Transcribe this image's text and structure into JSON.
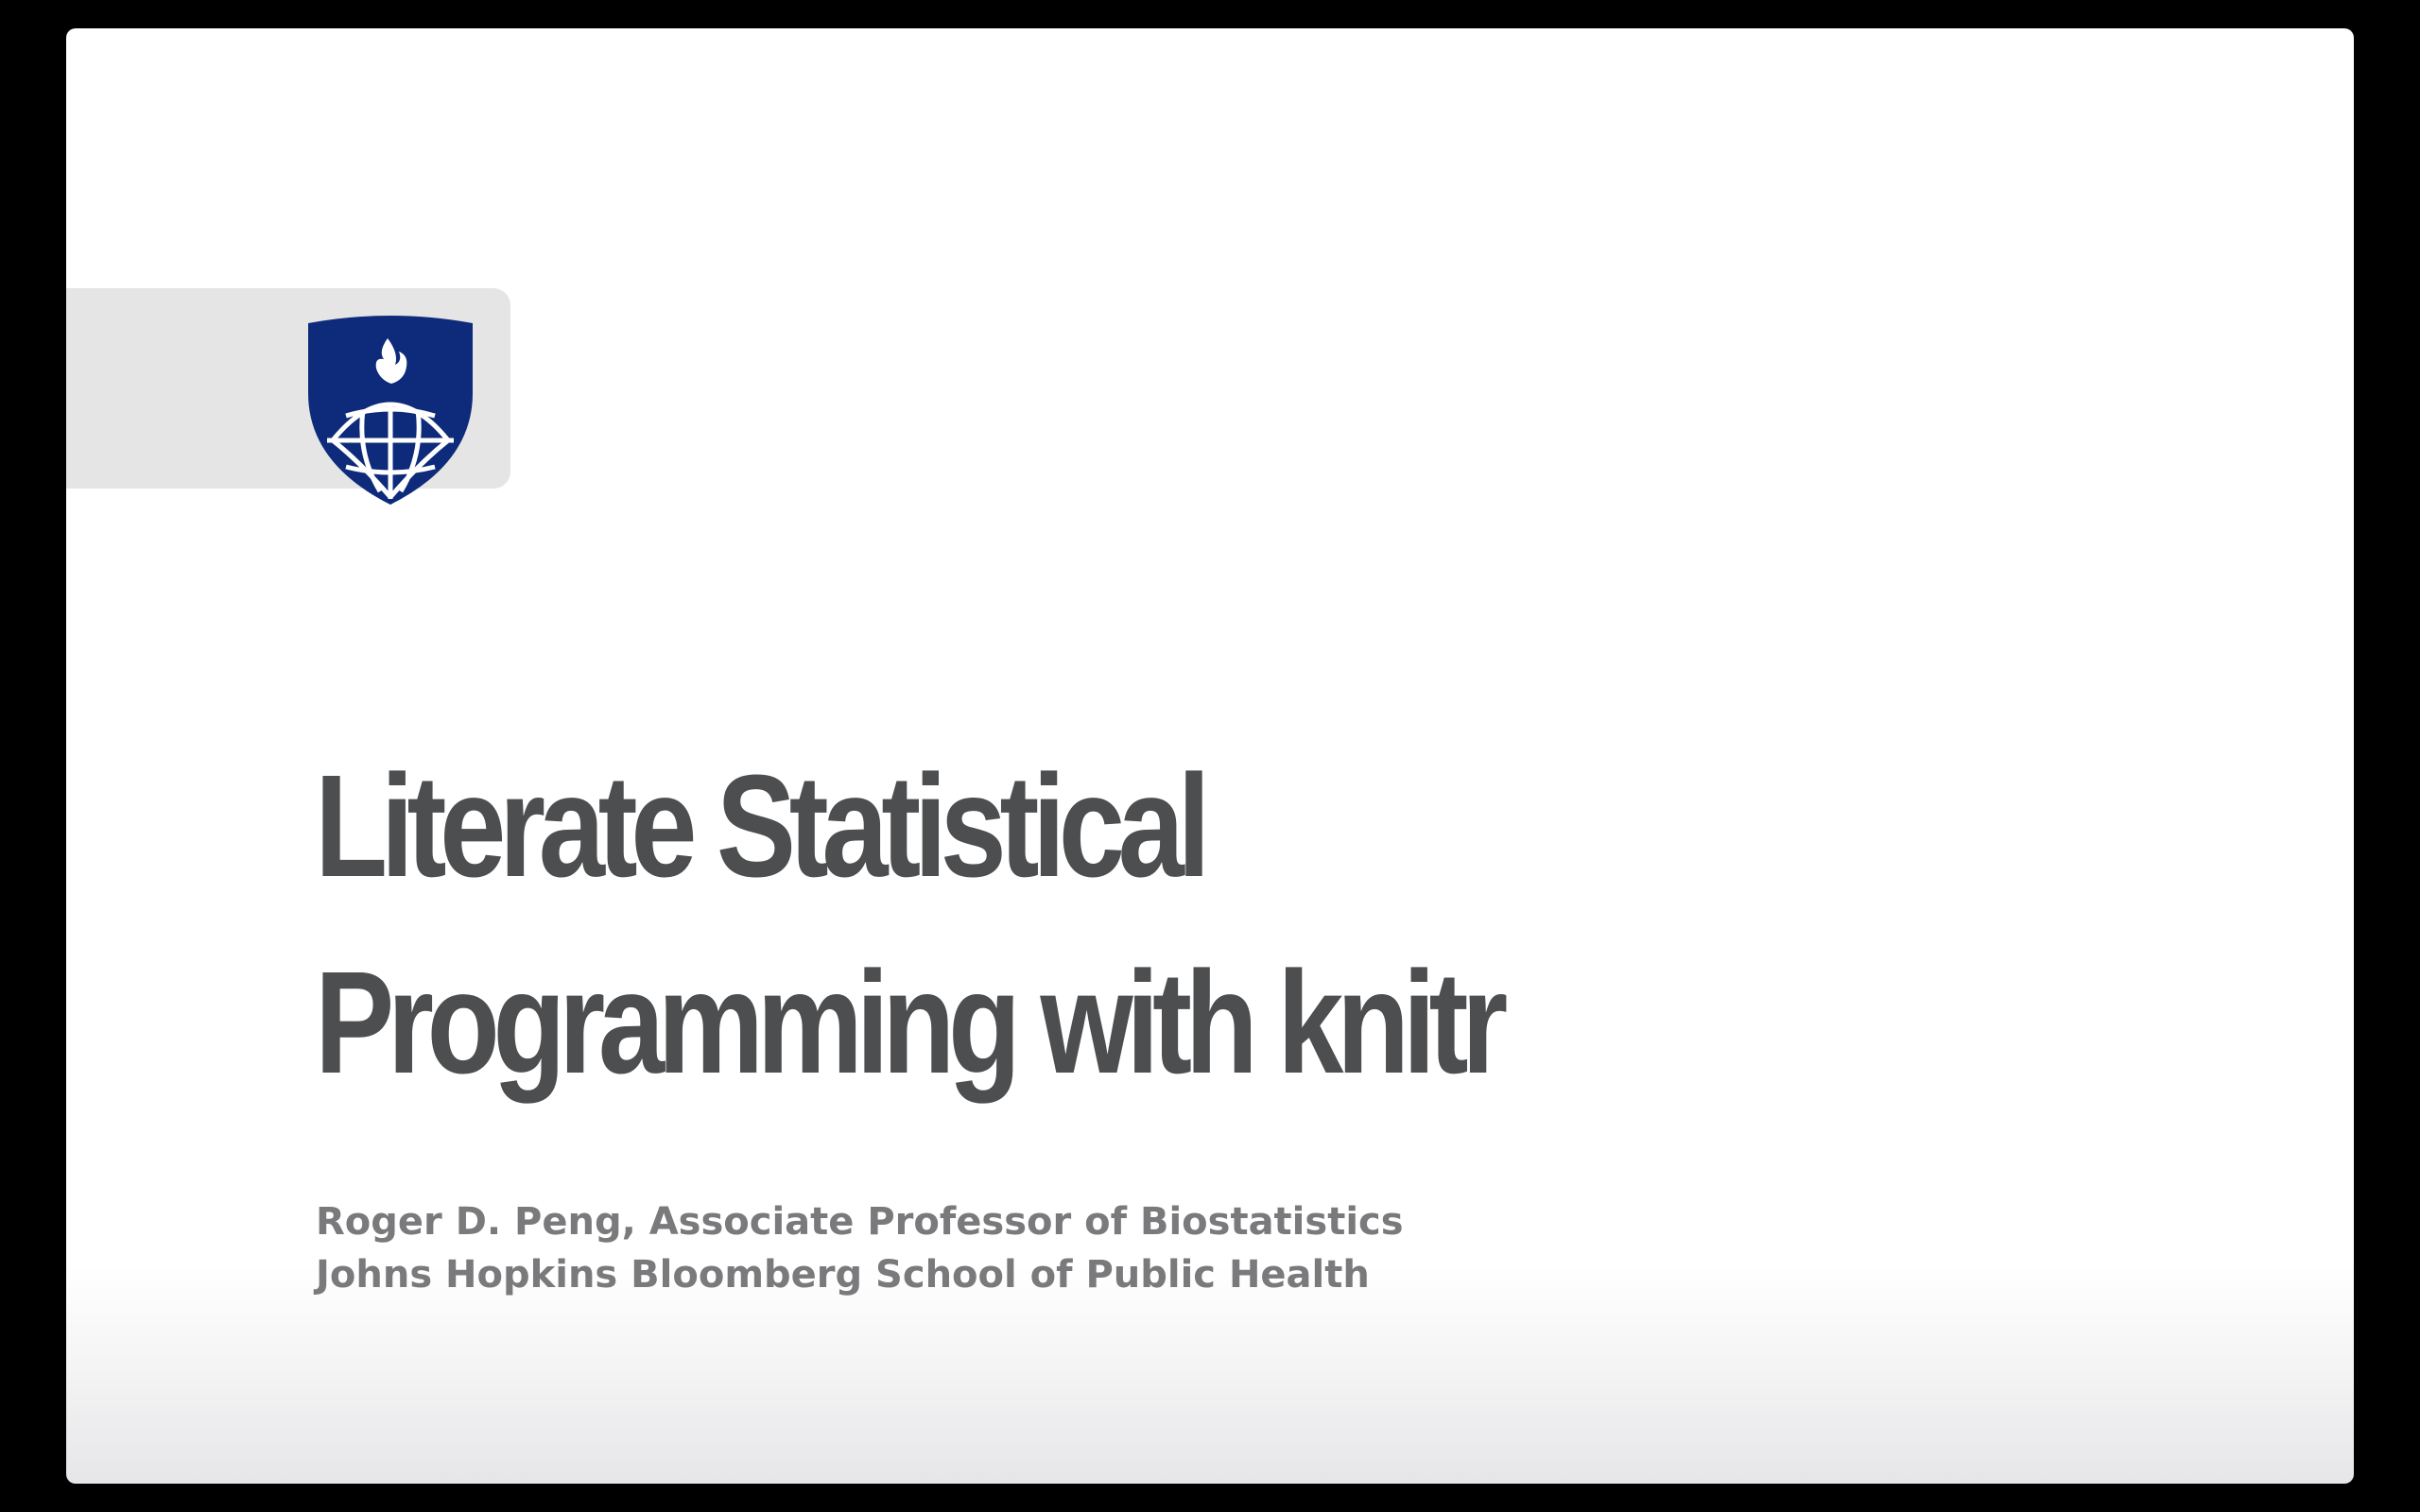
{
  "slide": {
    "title": "Literate Statistical Programming with knitr",
    "author_line": "Roger D. Peng, Associate Professor of Biostatistics",
    "affiliation_line": "Johns Hopkins Bloomberg School of Public Health",
    "logo": {
      "icon": "university-shield-icon",
      "shield_color": "#0d2b7a",
      "emblem_color": "#ffffff"
    },
    "colors": {
      "title": "#4d4e50",
      "subtitle": "#7a7a7c",
      "logo_bar": "#e5e5e6",
      "background": "#ffffff"
    }
  }
}
